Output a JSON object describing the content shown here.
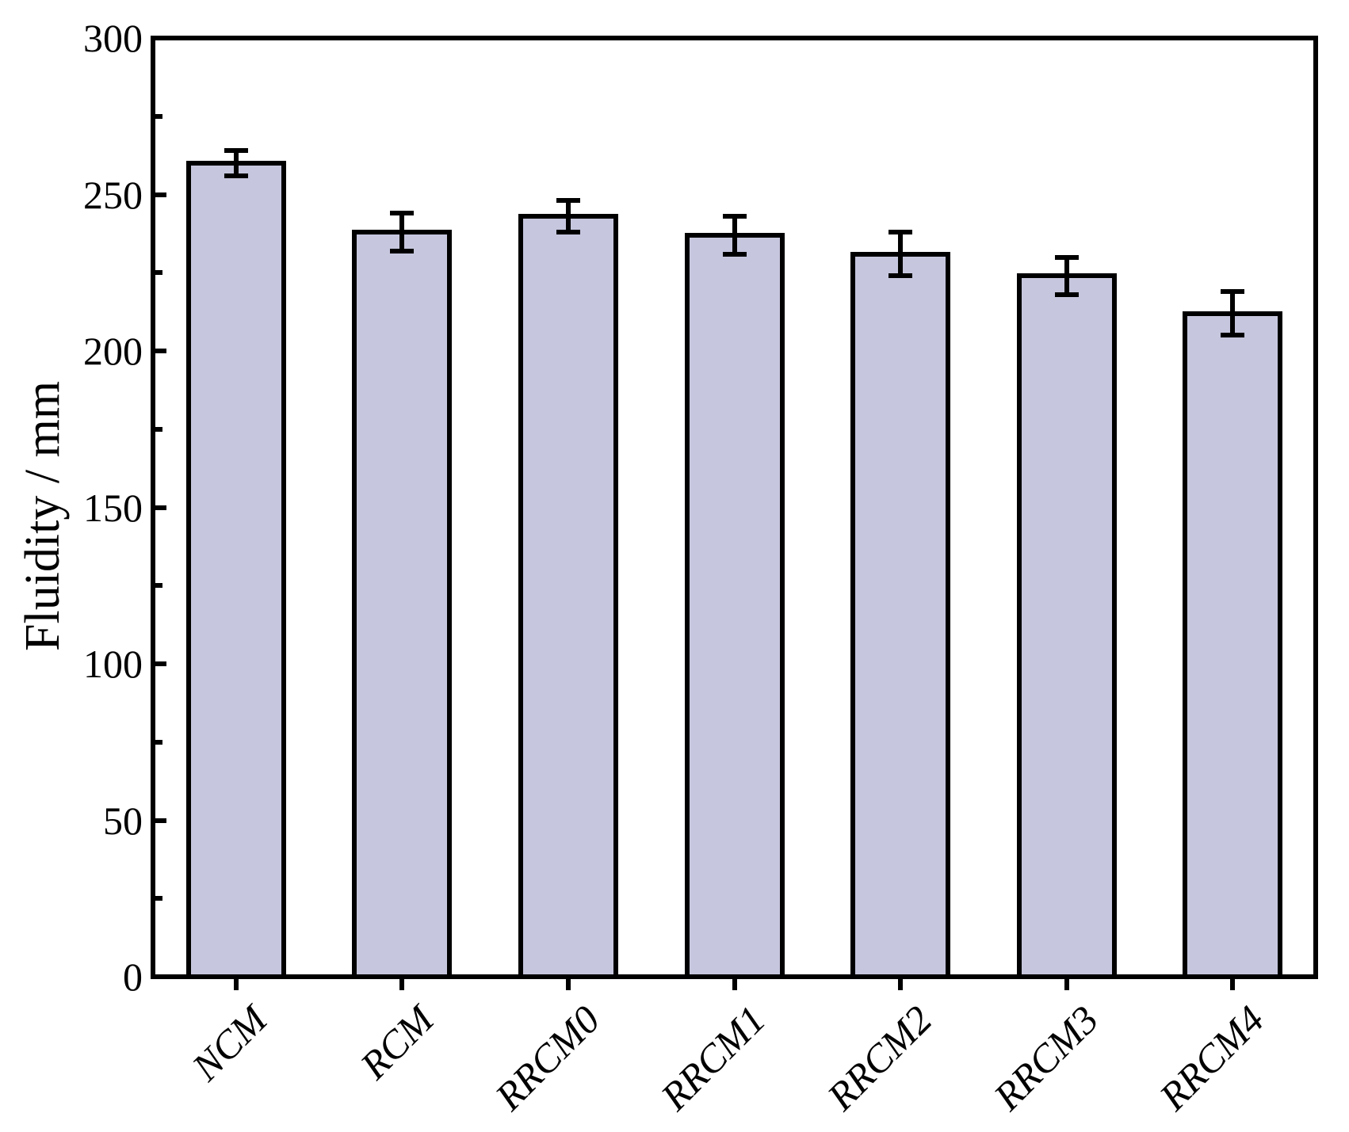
{
  "chart_data": {
    "type": "bar",
    "title": "",
    "categories": [
      "NCM",
      "RCM",
      "RRCM0",
      "RRCM1",
      "RRCM2",
      "RRCM3",
      "RRCM4"
    ],
    "values": [
      260,
      238,
      243,
      237,
      231,
      224,
      212
    ],
    "errors": [
      4,
      6,
      5,
      6,
      7,
      6,
      7
    ],
    "xlabel": "",
    "ylabel": "Fluidity / mm",
    "ylim": [
      0,
      300
    ],
    "ytick_step": 50,
    "yminor_step": 25,
    "ytick_labels": [
      "0",
      "50",
      "100",
      "150",
      "200",
      "250",
      "300"
    ],
    "grid": false,
    "legend_position": "none",
    "bar_fill_color": "#c6c7de",
    "bar_border_color": "#000000",
    "axis_color": "#000000",
    "background_color": "#ffffff"
  }
}
